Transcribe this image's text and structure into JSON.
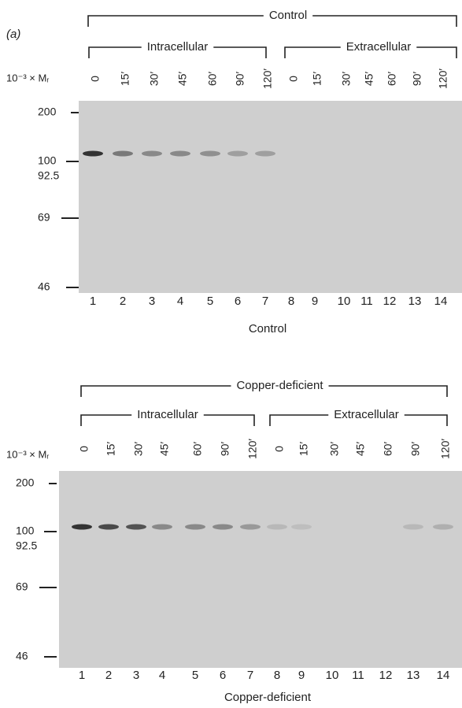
{
  "panel_label": "(a)",
  "panels": [
    {
      "group_label": "Control",
      "intracellular_label": "Intracellular",
      "extracellular_label": "Extracellular",
      "axis_label": "10⁻³ × Mᵣ",
      "intracellular_times": [
        "0",
        "15′",
        "30′",
        "45′",
        "60′",
        "90′",
        "120′"
      ],
      "extracellular_times": [
        "0",
        "15′",
        "30′",
        "45′",
        "60′",
        "90′",
        "120′"
      ],
      "markers": [
        "200",
        "100",
        "92.5",
        "69",
        "46"
      ],
      "lanes": [
        "1",
        "2",
        "3",
        "4",
        "5",
        "6",
        "7",
        "8",
        "9",
        "10",
        "11",
        "12",
        "13",
        "14"
      ],
      "caption": "Control"
    },
    {
      "group_label": "Copper-deficient",
      "intracellular_label": "Intracellular",
      "extracellular_label": "Extracellular",
      "axis_label": "10⁻³ × Mᵣ",
      "intracellular_times": [
        "0",
        "15′",
        "30′",
        "45′",
        "60′",
        "90′",
        "120′"
      ],
      "extracellular_times": [
        "0",
        "15′",
        "30′",
        "45′",
        "60′",
        "90′",
        "120′"
      ],
      "markers": [
        "200",
        "100",
        "92.5",
        "69",
        "46"
      ],
      "lanes": [
        "1",
        "2",
        "3",
        "4",
        "5",
        "6",
        "7",
        "8",
        "9",
        "10",
        "11",
        "12",
        "13",
        "14"
      ],
      "caption": "Copper-deficient"
    }
  ]
}
